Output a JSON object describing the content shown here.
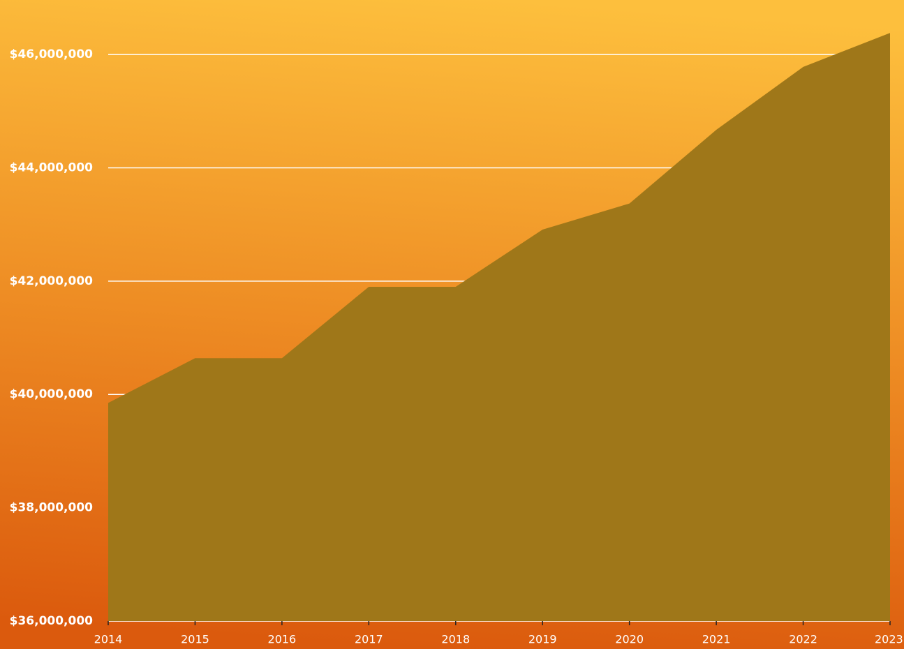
{
  "chart_data": {
    "type": "area",
    "categories": [
      "2014",
      "2015",
      "2016",
      "2017",
      "2018",
      "2019",
      "2020",
      "2021",
      "2022",
      "2023"
    ],
    "values": [
      39850000,
      40640000,
      40640000,
      41900000,
      41900000,
      42910000,
      43370000,
      44670000,
      45780000,
      46380000
    ],
    "color": "#9f7719",
    "ylim": [
      36000000,
      46900000
    ],
    "yticks": [
      {
        "value": 36000000,
        "label": "$36,000,000"
      },
      {
        "value": 38000000,
        "label": "$38,000,000"
      },
      {
        "value": 40000000,
        "label": "$40,000,000"
      },
      {
        "value": 42000000,
        "label": "$42,000,000"
      },
      {
        "value": 44000000,
        "label": "$44,000,000"
      },
      {
        "value": 46000000,
        "label": "$46,000,000"
      }
    ],
    "grid": true
  }
}
